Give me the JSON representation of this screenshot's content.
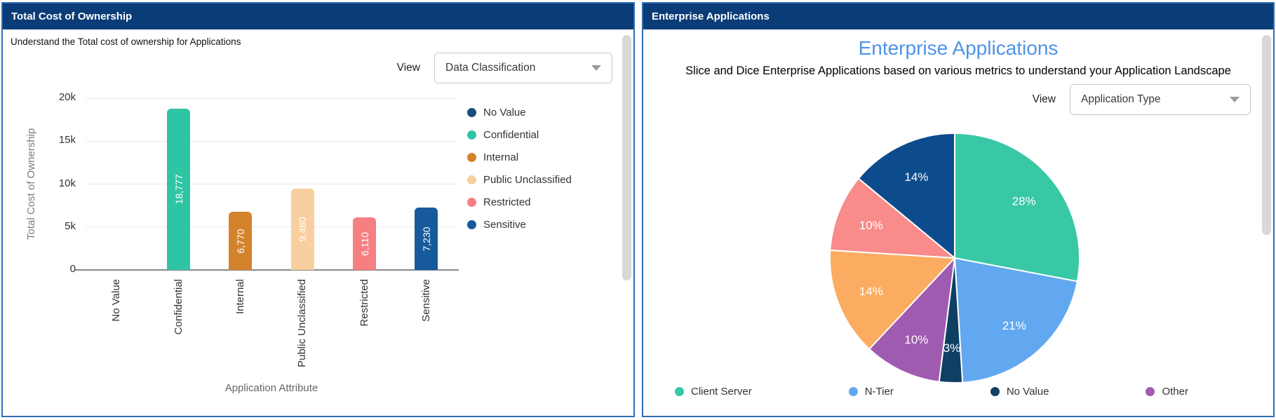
{
  "left_panel": {
    "header_title": "Total Cost of Ownership",
    "subtitle": "Understand the Total cost of ownership for Applications",
    "view_label": "View",
    "view_value": "Data Classification"
  },
  "right_panel": {
    "header_title": "Enterprise Applications",
    "title": "Enterprise Applications",
    "subtitle": "Slice and Dice Enterprise Applications based on various metrics to understand your Application Landscape",
    "view_label": "View",
    "view_value": "Application Type"
  },
  "colors": {
    "header_bg": "#0a3c77",
    "panel_border": "#2f6eb3",
    "right_title_blue": "#4e93e9",
    "gridline": "#e7e7e7",
    "axis_line": "#8a8a8a",
    "scrollbar_thumb": "#d8d8d8"
  },
  "chart_data": [
    {
      "type": "bar",
      "panel": "left",
      "categories": [
        "No Value",
        "Confidential",
        "Internal",
        "Public Unclassified",
        "Restricted",
        "Sensitive"
      ],
      "values": [
        0,
        18777,
        6770,
        9480,
        6110,
        7230
      ],
      "value_labels": [
        "",
        "18,777",
        "6,770",
        "9,480",
        "6,110",
        "7,230"
      ],
      "bar_colors": [
        "#1b4a7c",
        "#2fc5a4",
        "#d4832d",
        "#f9cfa0",
        "#f67f81",
        "#175a9c"
      ],
      "xlabel": "Application Attribute",
      "ylabel": "Total Cost of Ownership",
      "ylim": [
        0,
        20000
      ],
      "yticks": [
        {
          "value": 0,
          "label": "0"
        },
        {
          "value": 5000,
          "label": "5k"
        },
        {
          "value": 10000,
          "label": "10k"
        },
        {
          "value": 15000,
          "label": "15k"
        },
        {
          "value": 20000,
          "label": "20k"
        }
      ],
      "grid": true,
      "legend_position": "right",
      "legend": [
        {
          "label": "No Value",
          "color": "#1b4a7c"
        },
        {
          "label": "Confidential",
          "color": "#2fc5a4"
        },
        {
          "label": "Internal",
          "color": "#d4832d"
        },
        {
          "label": "Public Unclassified",
          "color": "#f9cfa0"
        },
        {
          "label": "Restricted",
          "color": "#f67f81"
        },
        {
          "label": "Sensitive",
          "color": "#175a9c"
        }
      ]
    },
    {
      "type": "pie",
      "panel": "right",
      "start_angle_deg": -90,
      "direction": "clockwise",
      "slices": [
        {
          "label": "Client Server",
          "pct": 28,
          "pct_label": "28%",
          "color": "#38c8a5"
        },
        {
          "label": "N-Tier",
          "pct": 21,
          "pct_label": "21%",
          "color": "#62a8f0"
        },
        {
          "label": "No Value",
          "pct": 3,
          "pct_label": "3%",
          "color": "#0f3f63"
        },
        {
          "label": "Other",
          "pct": 10,
          "pct_label": "10%",
          "color": "#9f5bb0"
        },
        {
          "label": "",
          "pct": 14,
          "pct_label": "14%",
          "color": "#fbac61"
        },
        {
          "label": "",
          "pct": 10,
          "pct_label": "10%",
          "color": "#f98b8b"
        },
        {
          "label": "",
          "pct": 14,
          "pct_label": "14%",
          "color": "#0d4c8c"
        }
      ],
      "legend_position": "bottom",
      "legend": [
        {
          "label": "Client Server",
          "color": "#38c8a5"
        },
        {
          "label": "N-Tier",
          "color": "#62a8f0"
        },
        {
          "label": "No Value",
          "color": "#0f3f63"
        },
        {
          "label": "Other",
          "color": "#9f5bb0"
        }
      ]
    }
  ]
}
